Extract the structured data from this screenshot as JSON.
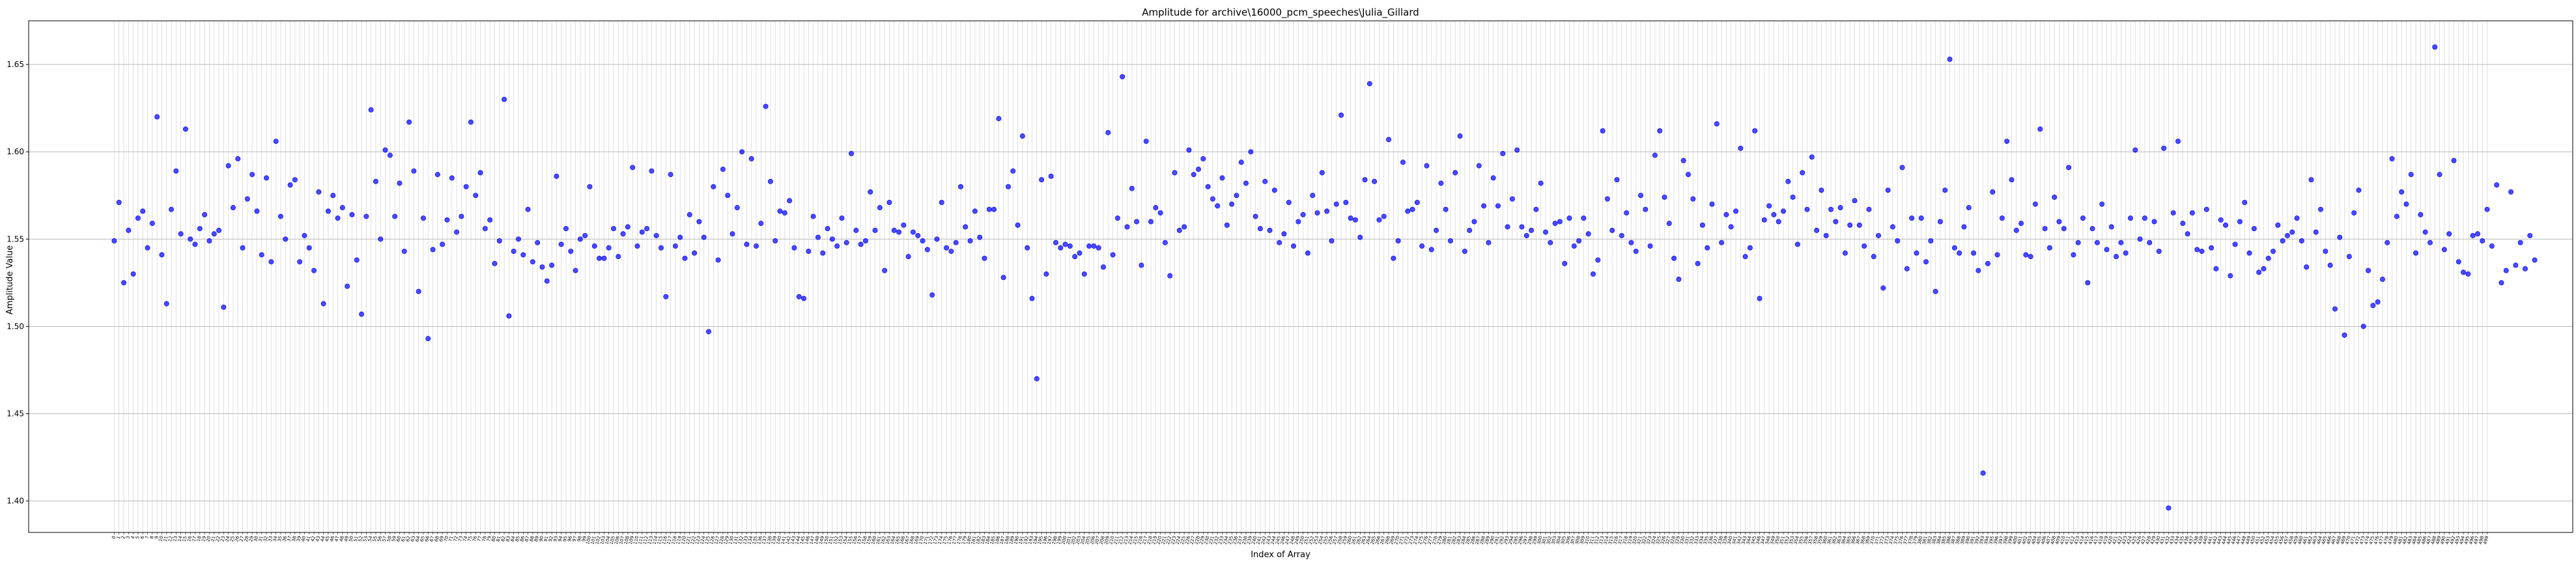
{
  "chart_data": {
    "type": "scatter",
    "title": "Amplitude for archive\\16000_pcm_speeches\\Julia_Gillard",
    "xlabel": "Index of Array",
    "ylabel": "Amplitude Value",
    "ylim": [
      1.382,
      1.675
    ],
    "yticks": [
      1.4,
      1.45,
      1.5,
      1.55,
      1.6,
      1.65
    ],
    "ytick_labels": [
      "1.40",
      "1.45",
      "1.50",
      "1.55",
      "1.60",
      "1.65"
    ],
    "x_count": 500,
    "grid": true,
    "series": [
      {
        "color": "#0000ff",
        "alpha": 0.7,
        "values": [
          1.549,
          1.571,
          1.525,
          1.555,
          1.53,
          1.562,
          1.566,
          1.545,
          1.559,
          1.62,
          1.541,
          1.513,
          1.567,
          1.589,
          1.553,
          1.613,
          1.55,
          1.547,
          1.556,
          1.564,
          1.549,
          1.553,
          1.555,
          1.511,
          1.592,
          1.568,
          1.596,
          1.545,
          1.573,
          1.587,
          1.566,
          1.541,
          1.585,
          1.537,
          1.606,
          1.563,
          1.55,
          1.581,
          1.584,
          1.537,
          1.552,
          1.545,
          1.532,
          1.577,
          1.513,
          1.566,
          1.575,
          1.562,
          1.568,
          1.523,
          1.564,
          1.538,
          1.507,
          1.563,
          1.624,
          1.583,
          1.55,
          1.601,
          1.598,
          1.563,
          1.582,
          1.543,
          1.617,
          1.589,
          1.52,
          1.562,
          1.493,
          1.544,
          1.587,
          1.547,
          1.561,
          1.585,
          1.554,
          1.563,
          1.58,
          1.617,
          1.575,
          1.588,
          1.556,
          1.561,
          1.536,
          1.549,
          1.63,
          1.506,
          1.543,
          1.55,
          1.541,
          1.567,
          1.537,
          1.548,
          1.534,
          1.526,
          1.535,
          1.586,
          1.547,
          1.556,
          1.543,
          1.532,
          1.55,
          1.552,
          1.58,
          1.546,
          1.539,
          1.539,
          1.545,
          1.556,
          1.54,
          1.553,
          1.557,
          1.591,
          1.546,
          1.554,
          1.556,
          1.589,
          1.552,
          1.545,
          1.517,
          1.587,
          1.546,
          1.551,
          1.539,
          1.564,
          1.542,
          1.56,
          1.551,
          1.497,
          1.58,
          1.538,
          1.59,
          1.575,
          1.553,
          1.568,
          1.6,
          1.547,
          1.596,
          1.546,
          1.559,
          1.626,
          1.583,
          1.549,
          1.566,
          1.565,
          1.572,
          1.545,
          1.517,
          1.516,
          1.543,
          1.563,
          1.551,
          1.542,
          1.556,
          1.55,
          1.546,
          1.562,
          1.548,
          1.599,
          1.555,
          1.547,
          1.549,
          1.577,
          1.555,
          1.568,
          1.532,
          1.571,
          1.555,
          1.554,
          1.558,
          1.54,
          1.554,
          1.552,
          1.549,
          1.544,
          1.518,
          1.55,
          1.571,
          1.545,
          1.543,
          1.548,
          1.58,
          1.557,
          1.549,
          1.566,
          1.551,
          1.539,
          1.567,
          1.567,
          1.619,
          1.528,
          1.58,
          1.589,
          1.558,
          1.609,
          1.545,
          1.516,
          1.47,
          1.584,
          1.53,
          1.586,
          1.548,
          1.545,
          1.547,
          1.546,
          1.54,
          1.542,
          1.53,
          1.546,
          1.546,
          1.545,
          1.534,
          1.611,
          1.541,
          1.562,
          1.643,
          1.557,
          1.579,
          1.56,
          1.535,
          1.606,
          1.56,
          1.568,
          1.565,
          1.548,
          1.529,
          1.588,
          1.555,
          1.557,
          1.601,
          1.587,
          1.59,
          1.596,
          1.58,
          1.573,
          1.569,
          1.585,
          1.558,
          1.57,
          1.575,
          1.594,
          1.582,
          1.6,
          1.563,
          1.556,
          1.583,
          1.555,
          1.578,
          1.548,
          1.553,
          1.571,
          1.546,
          1.56,
          1.564,
          1.542,
          1.575,
          1.565,
          1.588,
          1.566,
          1.549,
          1.57,
          1.621,
          1.571,
          1.562,
          1.561,
          1.551,
          1.584,
          1.639,
          1.583,
          1.561,
          1.563,
          1.607,
          1.539,
          1.549,
          1.594,
          1.566,
          1.567,
          1.571,
          1.546,
          1.592,
          1.544,
          1.555,
          1.582,
          1.567,
          1.549,
          1.588,
          1.609,
          1.543,
          1.555,
          1.56,
          1.592,
          1.569,
          1.548,
          1.585,
          1.569,
          1.599,
          1.557,
          1.573,
          1.601,
          1.557,
          1.552,
          1.555,
          1.567,
          1.582,
          1.554,
          1.548,
          1.559,
          1.56,
          1.536,
          1.562,
          1.546,
          1.549,
          1.562,
          1.553,
          1.53,
          1.538,
          1.612,
          1.573,
          1.555,
          1.584,
          1.552,
          1.565,
          1.548,
          1.543,
          1.575,
          1.567,
          1.546,
          1.598,
          1.612,
          1.574,
          1.559,
          1.539,
          1.527,
          1.595,
          1.587,
          1.573,
          1.536,
          1.558,
          1.545,
          1.57,
          1.616,
          1.548,
          1.564,
          1.557,
          1.566,
          1.602,
          1.54,
          1.545,
          1.612,
          1.516,
          1.561,
          1.569,
          1.564,
          1.56,
          1.566,
          1.583,
          1.574,
          1.547,
          1.588,
          1.567,
          1.597,
          1.555,
          1.578,
          1.552,
          1.567,
          1.56,
          1.568,
          1.542,
          1.558,
          1.572,
          1.558,
          1.546,
          1.567,
          1.54,
          1.552,
          1.522,
          1.578,
          1.557,
          1.549,
          1.591,
          1.533,
          1.562,
          1.542,
          1.562,
          1.537,
          1.549,
          1.52,
          1.56,
          1.578,
          1.653,
          1.545,
          1.542,
          1.557,
          1.568,
          1.542,
          1.532,
          1.416,
          1.536,
          1.577,
          1.541,
          1.562,
          1.606,
          1.584,
          1.555,
          1.559,
          1.541,
          1.54,
          1.57,
          1.613,
          1.556,
          1.545,
          1.574,
          1.56,
          1.556,
          1.591,
          1.541,
          1.548,
          1.562,
          1.525,
          1.556,
          1.548,
          1.57,
          1.544,
          1.557,
          1.54,
          1.548,
          1.542,
          1.562,
          1.601,
          1.55,
          1.562,
          1.548,
          1.56,
          1.543,
          1.602,
          1.396,
          1.565,
          1.606,
          1.559,
          1.553,
          1.565,
          1.544,
          1.543,
          1.567,
          1.545,
          1.533,
          1.561,
          1.558,
          1.529,
          1.547,
          1.56,
          1.571,
          1.542,
          1.556,
          1.531,
          1.533,
          1.539,
          1.543,
          1.558,
          1.549,
          1.552,
          1.554,
          1.562,
          1.549,
          1.534,
          1.584,
          1.554,
          1.567,
          1.543,
          1.535,
          1.51,
          1.551,
          1.495,
          1.54,
          1.565,
          1.578,
          1.5,
          1.532,
          1.512,
          1.514,
          1.527,
          1.548,
          1.596,
          1.563,
          1.577,
          1.57,
          1.587,
          1.542,
          1.564,
          1.554,
          1.548,
          1.66,
          1.587,
          1.544,
          1.553,
          1.595,
          1.537,
          1.531,
          1.53,
          1.552,
          1.553,
          1.549,
          1.567,
          1.546,
          1.581,
          1.525,
          1.532,
          1.577,
          1.535,
          1.548,
          1.533,
          1.552,
          1.538
        ]
      }
    ]
  }
}
